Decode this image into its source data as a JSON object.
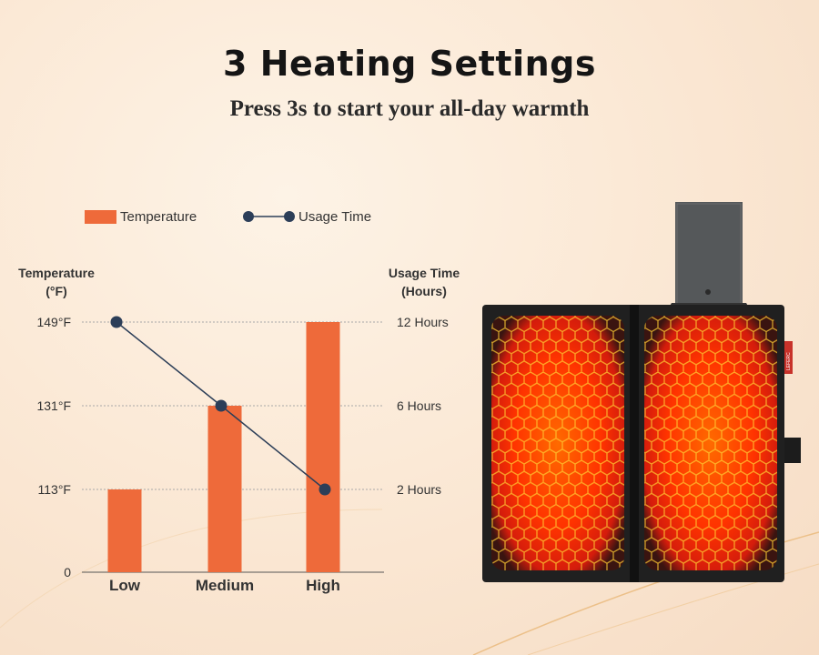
{
  "header": {
    "title": "3 Heating Settings",
    "subtitle": "Press 3s to start your all-day warmth"
  },
  "colors": {
    "bar": "#ee6a3a",
    "line": "#2c3e58",
    "grid": "#a8a8a8"
  },
  "chart_data": {
    "type": "bar",
    "categories": [
      "Low",
      "Medium",
      "High"
    ],
    "series": [
      {
        "name": "Temperature",
        "type": "bar",
        "axis": "left",
        "values": [
          113,
          131,
          149
        ]
      },
      {
        "name": "Usage Time",
        "type": "line",
        "axis": "right",
        "values": [
          12,
          6,
          2
        ]
      }
    ],
    "y_left": {
      "title_line1": "Temperature",
      "title_line2": "(°F)",
      "ticks": [
        {
          "value": 0,
          "label": "0"
        },
        {
          "value": 113,
          "label": "113°F"
        },
        {
          "value": 131,
          "label": "131°F"
        },
        {
          "value": 149,
          "label": "149°F"
        }
      ]
    },
    "y_right": {
      "title_line1": "Usage Time",
      "title_line2": "(Hours)",
      "ticks": [
        {
          "value": 2,
          "label": "2 Hours"
        },
        {
          "value": 6,
          "label": "6 Hours"
        },
        {
          "value": 12,
          "label": "12 Hours"
        }
      ]
    },
    "legend": {
      "position": "top-left"
    },
    "grid": "dotted horizontal lines at tick levels"
  },
  "product": {
    "tag_text": "LEFERC"
  }
}
